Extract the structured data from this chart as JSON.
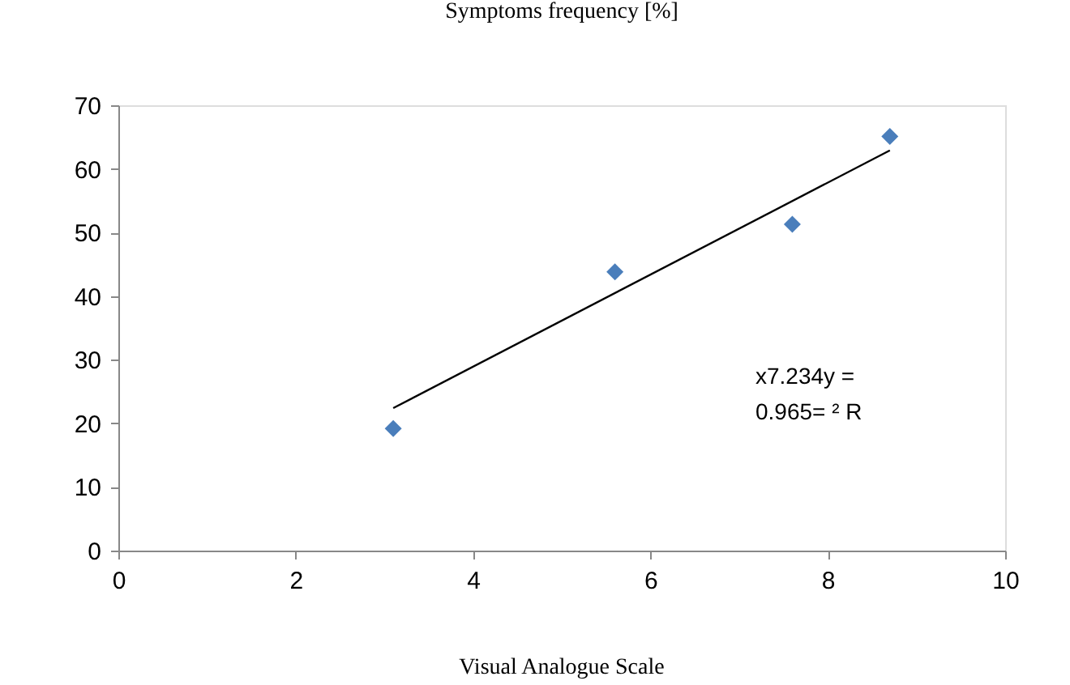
{
  "chart_data": {
    "type": "scatter",
    "title": "Symptoms frequency [%]",
    "xlabel": "Visual Analogue Scale",
    "marker": "diamond",
    "grid": false,
    "legend": false,
    "xlim": [
      0,
      10
    ],
    "xticks": [
      0,
      2,
      4,
      6,
      8,
      10
    ],
    "ylim": [
      0,
      70
    ],
    "yticks": [
      0,
      10,
      20,
      30,
      40,
      50,
      60,
      70
    ],
    "series": [
      {
        "color": "#4a7ebb",
        "x": [
          3.1,
          5.6,
          7.6,
          8.7
        ],
        "values": [
          19.2,
          43.8,
          51.3,
          65.1
        ]
      },
      {
        "type": "line",
        "marker": "none",
        "line_style": "solid",
        "color": "#000000",
        "x": [
          3.1,
          8.7
        ],
        "values": [
          22.4,
          62.9
        ]
      }
    ],
    "annotations": [
      "x7.234y =",
      "0.965= ² R"
    ]
  }
}
